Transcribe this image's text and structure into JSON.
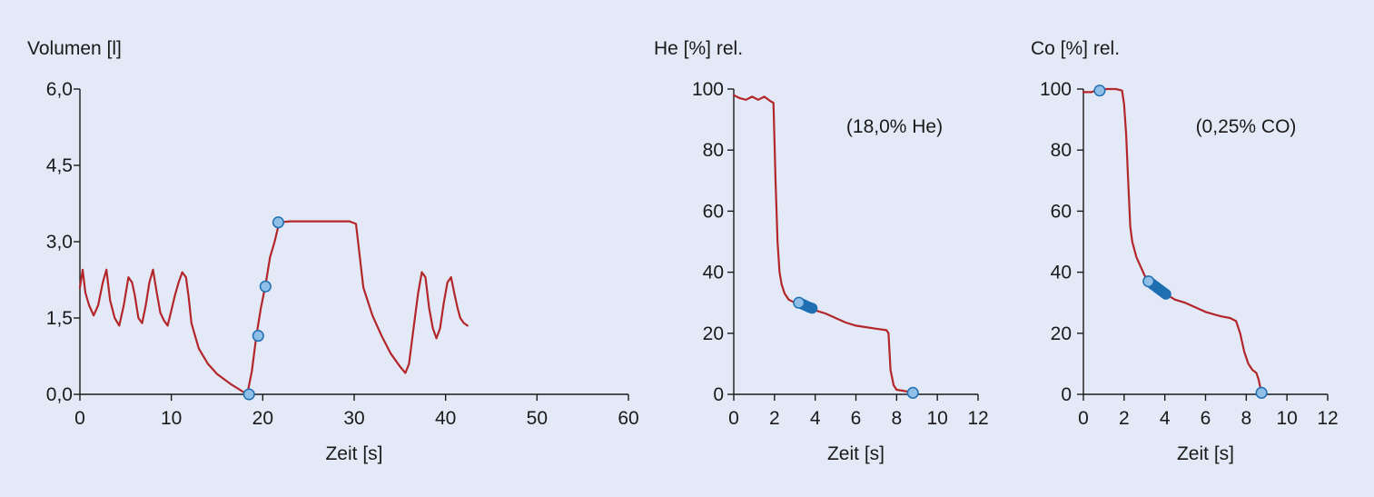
{
  "colors": {
    "background": "#e3e9f6",
    "line": "#b3262a",
    "marker_fill": "#8fbfe6",
    "marker_stroke": "#1f6fb2",
    "marker_dense": "#1f6fb2",
    "axis": "#1a1a1a"
  },
  "chart_data": [
    {
      "type": "line",
      "title": "",
      "ylabel": "Volumen [l]",
      "xlabel": "Zeit [s]",
      "xlim": [
        0,
        60
      ],
      "ylim": [
        0,
        6
      ],
      "xticks": [
        0,
        10,
        20,
        30,
        40,
        50,
        60
      ],
      "xtick_labels": [
        "0",
        "10",
        "20",
        "30",
        "40",
        "50",
        "60"
      ],
      "yticks": [
        0,
        1.5,
        3,
        4.5,
        6
      ],
      "ytick_labels": [
        "0,0",
        "1,5",
        "3,0",
        "4,5",
        "6,0"
      ],
      "annotation": "",
      "series": [
        {
          "x": [
            0,
            0.3,
            0.6,
            1.0,
            1.5,
            2.0,
            2.5,
            2.9,
            3.3,
            3.8,
            4.3,
            4.8,
            5.3,
            5.7,
            6.0,
            6.4,
            6.8,
            7.2,
            7.6,
            8.0,
            8.4,
            8.8,
            9.2,
            9.6,
            10.0,
            10.4,
            10.8,
            11.2,
            11.6,
            11.9,
            12.2,
            12.6,
            13.0,
            14.0,
            15.0,
            16.5,
            18.3,
            18.8,
            19.3,
            19.8,
            20.3,
            20.8,
            21.3,
            21.8,
            23.0,
            25.0,
            27.0,
            28.5,
            29.5,
            30.2,
            31.0,
            32.0,
            33.0,
            34.0,
            35.0,
            35.6,
            36.0,
            36.5,
            37.0,
            37.4,
            37.8,
            38.2,
            38.6,
            39.0,
            39.4,
            39.8,
            40.2,
            40.6,
            41.0,
            41.3,
            41.6,
            42.0,
            42.4
          ],
          "y": [
            2.1,
            2.45,
            2.0,
            1.75,
            1.55,
            1.75,
            2.2,
            2.45,
            1.85,
            1.5,
            1.35,
            1.75,
            2.3,
            2.2,
            1.95,
            1.5,
            1.4,
            1.75,
            2.2,
            2.45,
            2.0,
            1.6,
            1.45,
            1.35,
            1.65,
            1.95,
            2.2,
            2.4,
            2.3,
            1.9,
            1.4,
            1.15,
            0.9,
            0.6,
            0.4,
            0.2,
            0.0,
            0.45,
            1.15,
            1.7,
            2.15,
            2.7,
            3.0,
            3.38,
            3.4,
            3.4,
            3.4,
            3.4,
            3.4,
            3.35,
            2.1,
            1.55,
            1.15,
            0.8,
            0.55,
            0.42,
            0.6,
            1.3,
            2.0,
            2.4,
            2.3,
            1.7,
            1.3,
            1.1,
            1.3,
            1.8,
            2.2,
            2.3,
            1.95,
            1.7,
            1.5,
            1.4,
            1.35
          ]
        }
      ],
      "markers": [
        {
          "x": 18.5,
          "y": 0.0
        },
        {
          "x": 19.5,
          "y": 1.15
        },
        {
          "x": 20.3,
          "y": 2.12
        },
        {
          "x": 21.7,
          "y": 3.38
        }
      ],
      "dense_markers": []
    },
    {
      "type": "line",
      "title": "",
      "ylabel": "He [%] rel.",
      "xlabel": "Zeit [s]",
      "xlim": [
        0,
        12
      ],
      "ylim": [
        0,
        100
      ],
      "xticks": [
        0,
        2,
        4,
        6,
        8,
        10,
        12
      ],
      "xtick_labels": [
        "0",
        "2",
        "4",
        "6",
        "8",
        "10",
        "12"
      ],
      "yticks": [
        0,
        20,
        40,
        60,
        80,
        100
      ],
      "ytick_labels": [
        "0",
        "20",
        "40",
        "60",
        "80",
        "100"
      ],
      "annotation": "(18,0% He)",
      "series": [
        {
          "x": [
            0,
            0.3,
            0.6,
            0.9,
            1.2,
            1.5,
            1.8,
            1.95,
            2.05,
            2.15,
            2.25,
            2.35,
            2.5,
            2.7,
            3.0,
            3.3,
            3.6,
            4.0,
            4.5,
            5.0,
            5.5,
            6.0,
            6.5,
            7.0,
            7.5,
            7.6,
            7.7,
            7.85,
            8.0,
            8.3,
            8.6,
            8.8
          ],
          "y": [
            98,
            97,
            96.5,
            97.5,
            96.5,
            97.5,
            96,
            95.5,
            70,
            50,
            40,
            36,
            33,
            31,
            30,
            29.5,
            28.5,
            27.5,
            26.5,
            25,
            23.5,
            22.5,
            22,
            21.5,
            21,
            20,
            8,
            3,
            1.5,
            1.2,
            0.8,
            0.5
          ]
        }
      ],
      "markers": [
        {
          "x": 3.2,
          "y": 30.0
        },
        {
          "x": 8.8,
          "y": 0.5
        }
      ],
      "dense_markers": [
        {
          "x": 3.35,
          "y": 29.6
        },
        {
          "x": 3.45,
          "y": 29.3
        },
        {
          "x": 3.55,
          "y": 29.0
        },
        {
          "x": 3.65,
          "y": 28.7
        },
        {
          "x": 3.75,
          "y": 28.4
        },
        {
          "x": 3.85,
          "y": 28.2
        }
      ]
    },
    {
      "type": "line",
      "title": "",
      "ylabel": "Co [%] rel.",
      "xlabel": "Zeit [s]",
      "xlim": [
        0,
        12
      ],
      "ylim": [
        0,
        100
      ],
      "xticks": [
        0,
        2,
        4,
        6,
        8,
        10,
        12
      ],
      "xtick_labels": [
        "0",
        "2",
        "4",
        "6",
        "8",
        "10",
        "12"
      ],
      "yticks": [
        0,
        20,
        40,
        60,
        80,
        100
      ],
      "ytick_labels": [
        "0",
        "20",
        "40",
        "60",
        "80",
        "100"
      ],
      "annotation": "(0,25% CO)",
      "series": [
        {
          "x": [
            0,
            0.4,
            0.8,
            1.2,
            1.6,
            1.9,
            2.0,
            2.1,
            2.2,
            2.3,
            2.4,
            2.6,
            2.8,
            3.0,
            3.2,
            3.5,
            4.0,
            4.5,
            5.0,
            5.5,
            6.0,
            6.5,
            6.8,
            7.2,
            7.5,
            7.7,
            7.9,
            8.1,
            8.3,
            8.5,
            8.6,
            8.7,
            8.8
          ],
          "y": [
            99,
            99,
            100,
            100,
            100,
            99.5,
            95,
            85,
            70,
            55,
            50,
            45,
            42,
            39,
            37,
            35,
            33,
            31,
            30,
            28.5,
            27,
            26,
            25.5,
            25,
            24,
            20,
            14,
            10,
            8,
            7,
            5,
            2,
            0.5
          ]
        }
      ],
      "markers": [
        {
          "x": 0.8,
          "y": 99.5
        },
        {
          "x": 3.2,
          "y": 37.0
        },
        {
          "x": 8.75,
          "y": 0.5
        }
      ],
      "dense_markers": [
        {
          "x": 3.35,
          "y": 36.3
        },
        {
          "x": 3.45,
          "y": 35.8
        },
        {
          "x": 3.55,
          "y": 35.3
        },
        {
          "x": 3.65,
          "y": 34.8
        },
        {
          "x": 3.75,
          "y": 34.3
        },
        {
          "x": 3.85,
          "y": 33.8
        },
        {
          "x": 3.95,
          "y": 33.3
        },
        {
          "x": 4.05,
          "y": 32.8
        }
      ]
    }
  ]
}
